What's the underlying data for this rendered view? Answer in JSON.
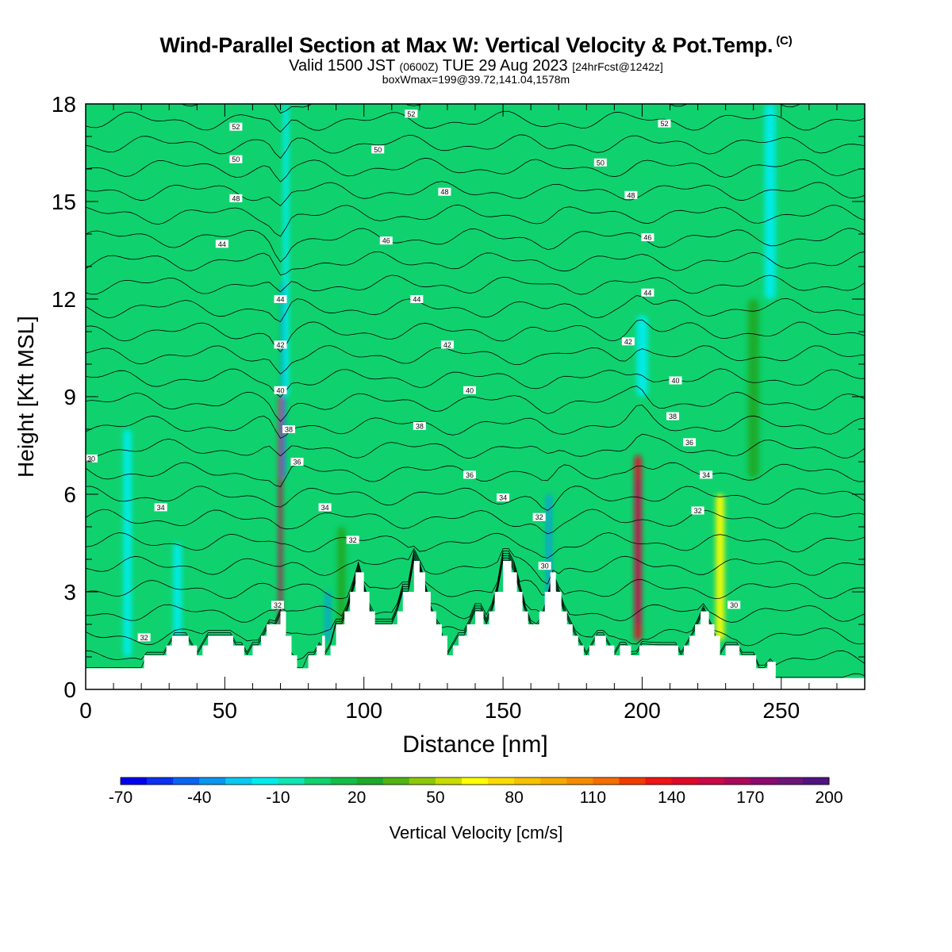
{
  "title": {
    "main": "Wind-Parallel Section at Max W: Vertical Velocity & Pot.Temp.",
    "copyright": "(C)",
    "valid_prefix": "Valid 1500 JST",
    "valid_utc": "(0600Z)",
    "valid_date": "TUE 29 Aug 2023",
    "forecast": "[24hrFcst@1242z]",
    "boxinfo": "boxWmax=199@39.72,141.04,1578m"
  },
  "colors": {
    "plot_background": "#0fd26e",
    "terrain": "#ffffff",
    "contour": "#000000"
  },
  "chart_data": {
    "type": "heatmap",
    "xlabel": "Distance [nm]",
    "ylabel": "Height [Kft MSL]",
    "xlim": [
      0,
      280
    ],
    "ylim": [
      0,
      18
    ],
    "x_ticks": [
      0,
      50,
      100,
      150,
      200,
      250
    ],
    "y_ticks": [
      0,
      3,
      6,
      9,
      12,
      15,
      18
    ],
    "colorbar": {
      "label": "Vertical Velocity [cm/s]",
      "range": [
        -70,
        200
      ],
      "tick_labels": [
        "-70",
        "-40",
        "-10",
        "20",
        "50",
        "80",
        "110",
        "140",
        "170",
        "200"
      ],
      "tick_values": [
        -70,
        -40,
        -10,
        20,
        50,
        80,
        110,
        140,
        170,
        200
      ],
      "colors": [
        "#0000f0",
        "#0a32f0",
        "#0a64f0",
        "#0a96f0",
        "#0ac8f0",
        "#00ecec",
        "#0fe6b4",
        "#0fd26e",
        "#14be46",
        "#1eaa28",
        "#50b414",
        "#8cc80a",
        "#c8dc00",
        "#ffff00",
        "#fadc00",
        "#f5c300",
        "#f5aa00",
        "#f58c00",
        "#f56e00",
        "#f03c00",
        "#f01414",
        "#dc0a28",
        "#c80a46",
        "#aa0a5a",
        "#8c0a6e",
        "#6e1478",
        "#501482"
      ]
    },
    "terrain_kft": [
      [
        0,
        0.65
      ],
      [
        21,
        0.65
      ],
      [
        21,
        1.05
      ],
      [
        29,
        1.05
      ],
      [
        29,
        1.35
      ],
      [
        31,
        1.35
      ],
      [
        31,
        1.65
      ],
      [
        37,
        1.65
      ],
      [
        37,
        1.35
      ],
      [
        40,
        1.35
      ],
      [
        40,
        1.05
      ],
      [
        42,
        1.05
      ],
      [
        42,
        1.35
      ],
      [
        44,
        1.35
      ],
      [
        44,
        1.65
      ],
      [
        53,
        1.65
      ],
      [
        53,
        1.35
      ],
      [
        57,
        1.35
      ],
      [
        57,
        1.05
      ],
      [
        60,
        1.05
      ],
      [
        60,
        1.35
      ],
      [
        63,
        1.35
      ],
      [
        63,
        1.65
      ],
      [
        65,
        1.65
      ],
      [
        65,
        2.0
      ],
      [
        70,
        2.0
      ],
      [
        70,
        2.4
      ],
      [
        72,
        2.4
      ],
      [
        72,
        1.65
      ],
      [
        74,
        1.65
      ],
      [
        74,
        1.05
      ],
      [
        76,
        1.05
      ],
      [
        76,
        0.65
      ],
      [
        80,
        0.65
      ],
      [
        80,
        1.05
      ],
      [
        83,
        1.05
      ],
      [
        83,
        1.35
      ],
      [
        85,
        1.35
      ],
      [
        85,
        1.65
      ],
      [
        86,
        1.65
      ],
      [
        86,
        1.05
      ],
      [
        88,
        1.05
      ],
      [
        88,
        1.35
      ],
      [
        90,
        1.35
      ],
      [
        90,
        2.0
      ],
      [
        93,
        2.0
      ],
      [
        93,
        2.4
      ],
      [
        95,
        2.4
      ],
      [
        95,
        3.0
      ],
      [
        97,
        3.0
      ],
      [
        97,
        3.6
      ],
      [
        100,
        3.6
      ],
      [
        100,
        3.0
      ],
      [
        102,
        3.0
      ],
      [
        102,
        2.4
      ],
      [
        104,
        2.4
      ],
      [
        104,
        2.0
      ],
      [
        112,
        2.0
      ],
      [
        112,
        2.4
      ],
      [
        114,
        2.4
      ],
      [
        114,
        3.0
      ],
      [
        118,
        3.0
      ],
      [
        118,
        3.95
      ],
      [
        120,
        3.95
      ],
      [
        120,
        3.6
      ],
      [
        122,
        3.6
      ],
      [
        122,
        3.0
      ],
      [
        124,
        3.0
      ],
      [
        124,
        2.4
      ],
      [
        126,
        2.4
      ],
      [
        126,
        2.0
      ],
      [
        128,
        2.0
      ],
      [
        128,
        1.65
      ],
      [
        130,
        1.65
      ],
      [
        130,
        1.05
      ],
      [
        132,
        1.05
      ],
      [
        132,
        1.35
      ],
      [
        134,
        1.35
      ],
      [
        134,
        1.65
      ],
      [
        137,
        1.65
      ],
      [
        137,
        2.0
      ],
      [
        140,
        2.0
      ],
      [
        140,
        2.4
      ],
      [
        143,
        2.4
      ],
      [
        143,
        2.0
      ],
      [
        145,
        2.0
      ],
      [
        145,
        2.4
      ],
      [
        147,
        2.4
      ],
      [
        147,
        3.0
      ],
      [
        150,
        3.0
      ],
      [
        150,
        3.95
      ],
      [
        153,
        3.95
      ],
      [
        153,
        3.6
      ],
      [
        155,
        3.6
      ],
      [
        155,
        3.0
      ],
      [
        157,
        3.0
      ],
      [
        157,
        2.4
      ],
      [
        159,
        2.4
      ],
      [
        159,
        2.0
      ],
      [
        163,
        2.0
      ],
      [
        163,
        2.4
      ],
      [
        165,
        2.4
      ],
      [
        165,
        3.0
      ],
      [
        167,
        3.0
      ],
      [
        167,
        3.6
      ],
      [
        169,
        3.6
      ],
      [
        169,
        3.0
      ],
      [
        171,
        3.0
      ],
      [
        171,
        2.4
      ],
      [
        173,
        2.4
      ],
      [
        173,
        2.0
      ],
      [
        175,
        2.0
      ],
      [
        175,
        1.65
      ],
      [
        177,
        1.65
      ],
      [
        177,
        1.35
      ],
      [
        179,
        1.35
      ],
      [
        179,
        1.05
      ],
      [
        181,
        1.05
      ],
      [
        181,
        1.35
      ],
      [
        183,
        1.35
      ],
      [
        183,
        1.65
      ],
      [
        187,
        1.65
      ],
      [
        187,
        1.35
      ],
      [
        190,
        1.35
      ],
      [
        190,
        1.05
      ],
      [
        192,
        1.05
      ],
      [
        192,
        1.35
      ],
      [
        196,
        1.35
      ],
      [
        196,
        1.05
      ],
      [
        199,
        1.05
      ],
      [
        199,
        1.35
      ],
      [
        213,
        1.35
      ],
      [
        213,
        1.05
      ],
      [
        215,
        1.05
      ],
      [
        215,
        1.35
      ],
      [
        217,
        1.35
      ],
      [
        217,
        1.65
      ],
      [
        219,
        1.65
      ],
      [
        219,
        2.0
      ],
      [
        221,
        2.0
      ],
      [
        221,
        2.4
      ],
      [
        224,
        2.4
      ],
      [
        224,
        2.0
      ],
      [
        226,
        2.0
      ],
      [
        226,
        1.65
      ],
      [
        228,
        1.65
      ],
      [
        228,
        1.05
      ],
      [
        230,
        1.05
      ],
      [
        230,
        1.35
      ],
      [
        235,
        1.35
      ],
      [
        235,
        1.05
      ],
      [
        241,
        1.05
      ],
      [
        241,
        0.65
      ],
      [
        245,
        0.65
      ],
      [
        245,
        0.85
      ],
      [
        248,
        0.85
      ],
      [
        248,
        0.35
      ],
      [
        280,
        0.35
      ]
    ],
    "features": [
      {
        "kind": "updraft",
        "x": 70.0,
        "y0": 1.5,
        "y1": 9.0,
        "w_cm_s": 140,
        "width": 1.2
      },
      {
        "kind": "updraft",
        "x": 198.5,
        "y0": 1.5,
        "y1": 7.2,
        "w_cm_s": 140,
        "width": 2.5
      },
      {
        "kind": "updraft",
        "x": 228.0,
        "y0": 1.5,
        "y1": 6.0,
        "w_cm_s": 65,
        "width": 3.0
      },
      {
        "kind": "downdraft",
        "x": 71.0,
        "y0": 6.5,
        "y1": 12.5,
        "w_cm_s": -45,
        "width": 1.0
      },
      {
        "kind": "downdraft",
        "x": 166.5,
        "y0": 2.0,
        "y1": 6.0,
        "w_cm_s": -40,
        "width": 1.6
      },
      {
        "kind": "downdraft",
        "x": 87.0,
        "y0": 1.5,
        "y1": 3.0,
        "w_cm_s": -40,
        "width": 1.4
      },
      {
        "kind": "weak_downdraft",
        "x": 15.0,
        "y0": 1.0,
        "y1": 8.0,
        "w_cm_s": -15,
        "width": 3.0
      },
      {
        "kind": "weak_downdraft",
        "x": 33.0,
        "y0": 1.5,
        "y1": 4.5,
        "w_cm_s": -12,
        "width": 3.0
      },
      {
        "kind": "weak_downdraft",
        "x": 72.0,
        "y0": 9.0,
        "y1": 18.0,
        "w_cm_s": -12,
        "width": 2.0
      },
      {
        "kind": "weak_downdraft",
        "x": 200.0,
        "y0": 9.0,
        "y1": 11.5,
        "w_cm_s": -12,
        "width": 4.0
      },
      {
        "kind": "weak_downdraft",
        "x": 246.0,
        "y0": 12.0,
        "y1": 18.0,
        "w_cm_s": -12,
        "width": 4.0
      },
      {
        "kind": "weak_updraft",
        "x": 240.0,
        "y0": 6.5,
        "y1": 12.0,
        "w_cm_s": 25,
        "width": 4.0
      },
      {
        "kind": "weak_updraft",
        "x": 92.0,
        "y0": 1.5,
        "y1": 5.0,
        "w_cm_s": 20,
        "width": 3.0
      }
    ],
    "theta_labels": [
      {
        "v": "30",
        "x": 2,
        "y": 7.1
      },
      {
        "v": "34",
        "x": 27,
        "y": 5.6
      },
      {
        "v": "32",
        "x": 21,
        "y": 1.6
      },
      {
        "v": "44",
        "x": 49,
        "y": 13.7
      },
      {
        "v": "48",
        "x": 54,
        "y": 15.1
      },
      {
        "v": "50",
        "x": 54,
        "y": 16.3
      },
      {
        "v": "52",
        "x": 54,
        "y": 17.3
      },
      {
        "v": "44",
        "x": 70,
        "y": 12.0
      },
      {
        "v": "42",
        "x": 70,
        "y": 10.6
      },
      {
        "v": "40",
        "x": 70,
        "y": 9.2
      },
      {
        "v": "38",
        "x": 73,
        "y": 8.0
      },
      {
        "v": "36",
        "x": 76,
        "y": 7.0
      },
      {
        "v": "34",
        "x": 86,
        "y": 5.6
      },
      {
        "v": "32",
        "x": 96,
        "y": 4.6
      },
      {
        "v": "32",
        "x": 69,
        "y": 2.6
      },
      {
        "v": "52",
        "x": 117,
        "y": 17.7
      },
      {
        "v": "50",
        "x": 105,
        "y": 16.6
      },
      {
        "v": "48",
        "x": 129,
        "y": 15.3
      },
      {
        "v": "46",
        "x": 108,
        "y": 13.8
      },
      {
        "v": "44",
        "x": 119,
        "y": 12.0
      },
      {
        "v": "42",
        "x": 130,
        "y": 10.6
      },
      {
        "v": "40",
        "x": 138,
        "y": 9.2
      },
      {
        "v": "38",
        "x": 120,
        "y": 8.1
      },
      {
        "v": "36",
        "x": 138,
        "y": 6.6
      },
      {
        "v": "34",
        "x": 150,
        "y": 5.9
      },
      {
        "v": "32",
        "x": 163,
        "y": 5.3
      },
      {
        "v": "30",
        "x": 165,
        "y": 3.8
      },
      {
        "v": "52",
        "x": 208,
        "y": 17.4
      },
      {
        "v": "50",
        "x": 185,
        "y": 16.2
      },
      {
        "v": "48",
        "x": 196,
        "y": 15.2
      },
      {
        "v": "46",
        "x": 202,
        "y": 13.9
      },
      {
        "v": "44",
        "x": 202,
        "y": 12.2
      },
      {
        "v": "42",
        "x": 195,
        "y": 10.7
      },
      {
        "v": "40",
        "x": 212,
        "y": 9.5
      },
      {
        "v": "38",
        "x": 211,
        "y": 8.4
      },
      {
        "v": "36",
        "x": 217,
        "y": 7.6
      },
      {
        "v": "34",
        "x": 223,
        "y": 6.6
      },
      {
        "v": "32",
        "x": 220,
        "y": 5.5
      },
      {
        "v": "30",
        "x": 233,
        "y": 2.6
      }
    ]
  }
}
